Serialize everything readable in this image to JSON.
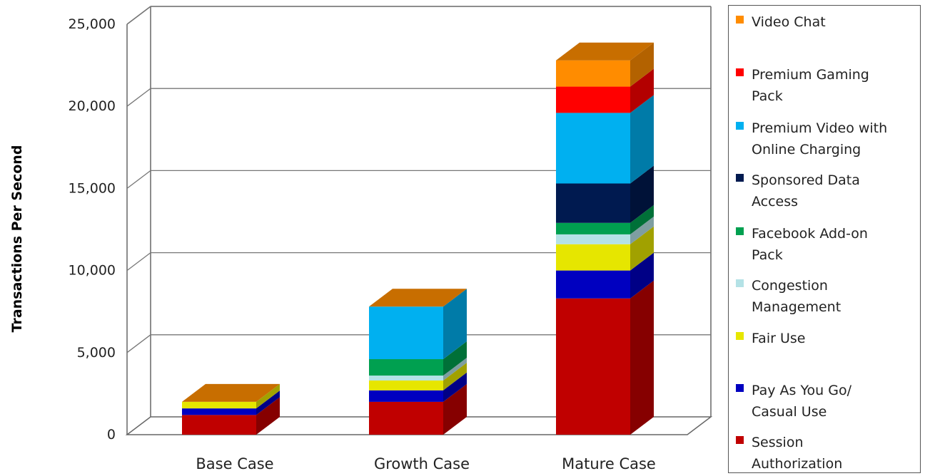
{
  "chart_data": {
    "type": "bar",
    "stacked": true,
    "style": "3d",
    "title": "",
    "xlabel": "",
    "ylabel": "Transactions Per Second",
    "ylim": [
      0,
      25000
    ],
    "yticks": [
      "0",
      "5,000",
      "10,000",
      "15,000",
      "20,000",
      "25,000"
    ],
    "grid": true,
    "legend_position": "right",
    "categories": [
      "Base Case",
      "Growth Case",
      "Mature Case"
    ],
    "series": [
      {
        "name": "Session Authorization",
        "color": "#c00000",
        "values": [
          1200,
          2000,
          8300
        ]
      },
      {
        "name": "Pay As You Go/ Casual Use",
        "color": "#0000c0",
        "values": [
          400,
          700,
          1700
        ]
      },
      {
        "name": "Fair Use",
        "color": "#e6e600",
        "values": [
          400,
          600,
          1600
        ]
      },
      {
        "name": "Congestion Management",
        "color": "#b4e2e6",
        "values": [
          0,
          300,
          600
        ]
      },
      {
        "name": "Facebook Add-on Pack",
        "color": "#00a050",
        "values": [
          0,
          1000,
          700
        ]
      },
      {
        "name": "Sponsored Data Access",
        "color": "#001a50",
        "values": [
          0,
          0,
          2400
        ]
      },
      {
        "name": "Premium Video with Online Charging",
        "color": "#00b0f0",
        "values": [
          0,
          3200,
          4300
        ]
      },
      {
        "name": "Premium Gaming Pack",
        "color": "#ff0000",
        "values": [
          0,
          0,
          1600
        ]
      },
      {
        "name": "Video Chat",
        "color": "#ff8c00",
        "values": [
          0,
          0,
          1600
        ]
      }
    ]
  },
  "legend": {
    "items": [
      "Video Chat",
      "Premium Gaming\nPack",
      "Premium Video with\nOnline Charging",
      "Sponsored Data\nAccess",
      "Facebook Add-on\nPack",
      "Congestion\nManagement",
      "Fair Use",
      "Pay As You Go/\nCasual Use",
      "Session\nAuthorization"
    ]
  }
}
